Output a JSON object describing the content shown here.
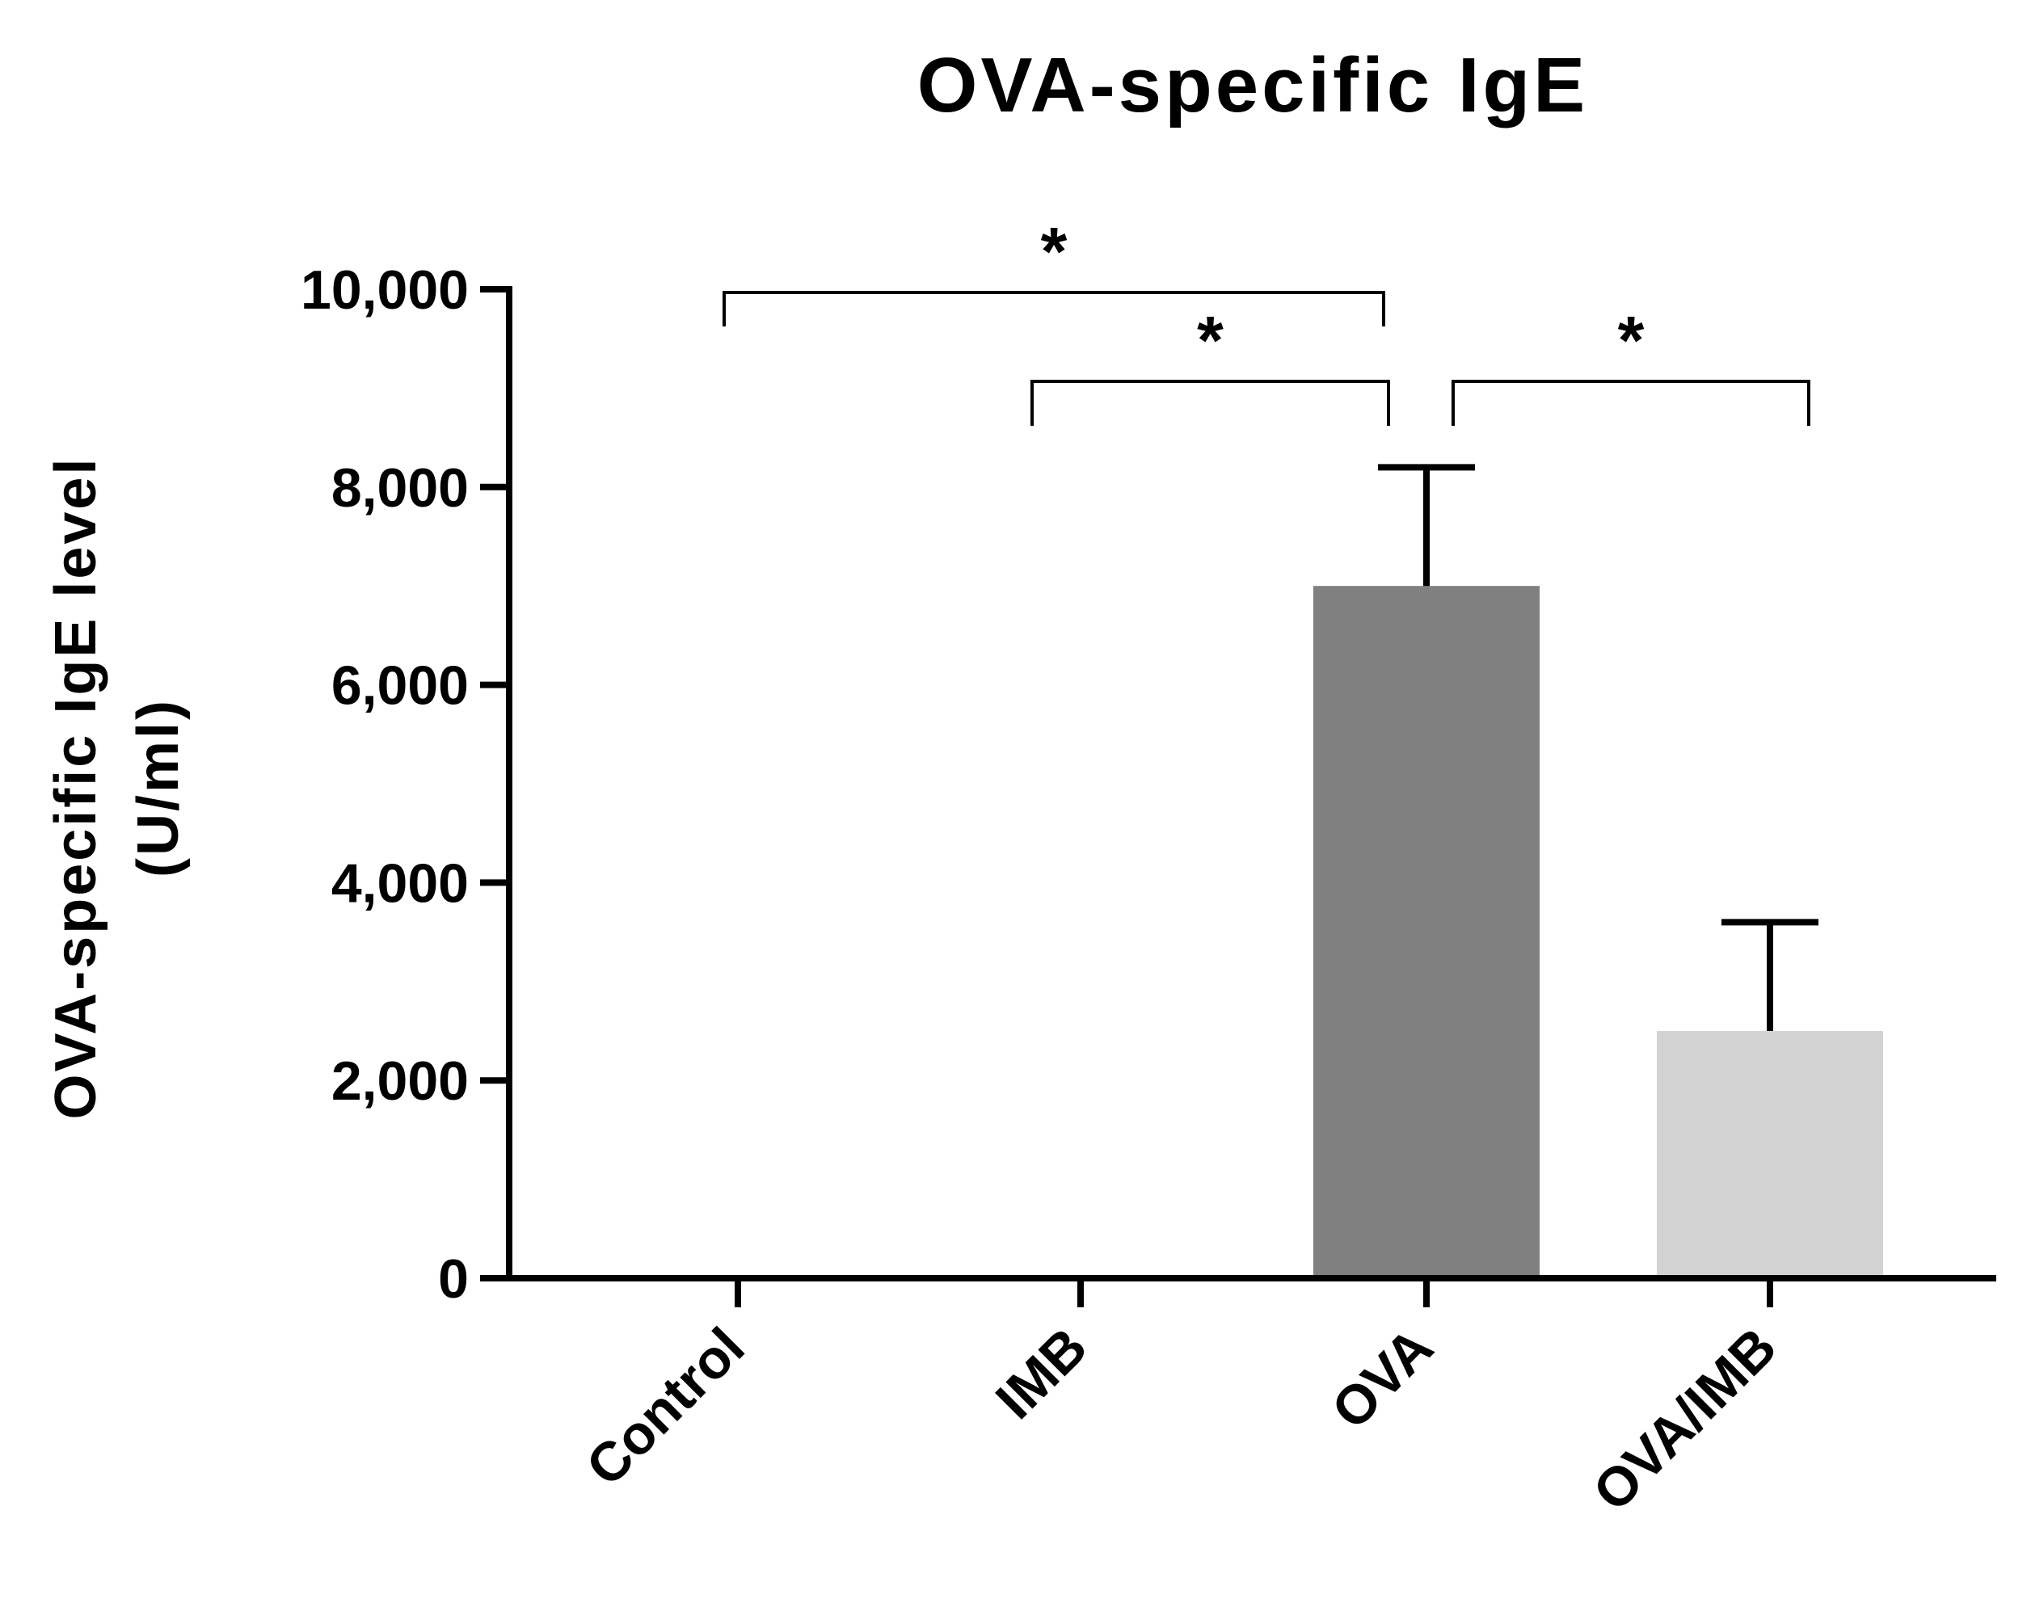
{
  "chart_data": {
    "type": "bar",
    "title": "OVA-specific IgE",
    "ylabel": "OVA-specific IgE level",
    "ylabel_unit": "(U/ml)",
    "xlabel": "",
    "categories": [
      "Control",
      "IMB",
      "OVA",
      "OVA/IMB"
    ],
    "values": [
      0,
      0,
      7000,
      2500
    ],
    "errors": [
      0,
      0,
      1200,
      1100
    ],
    "bar_colors": [
      "#ffffff",
      "#ffffff",
      "#808080",
      "#d3d3d3"
    ],
    "ylim": [
      0,
      10000
    ],
    "yticks": [
      0,
      2000,
      4000,
      6000,
      8000,
      10000
    ],
    "ytick_labels": [
      "0",
      "2,000",
      "4,000",
      "6,000",
      "8,000",
      "10,000"
    ],
    "grid": false,
    "significance": [
      {
        "from": "Control",
        "to": "OVA",
        "label": "*"
      },
      {
        "from": "IMB",
        "to": "OVA",
        "label": "*"
      },
      {
        "from": "OVA",
        "to": "OVA/IMB",
        "label": "*"
      }
    ]
  }
}
